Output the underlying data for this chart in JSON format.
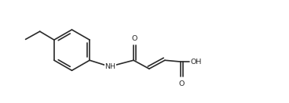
{
  "bg_color": "#ffffff",
  "line_color": "#2a2a2a",
  "line_width": 1.2,
  "font_size": 6.8,
  "fig_width": 3.68,
  "fig_height": 1.32,
  "dpi": 100,
  "xlim": [
    0,
    9.2
  ],
  "ylim": [
    0,
    3.6
  ]
}
